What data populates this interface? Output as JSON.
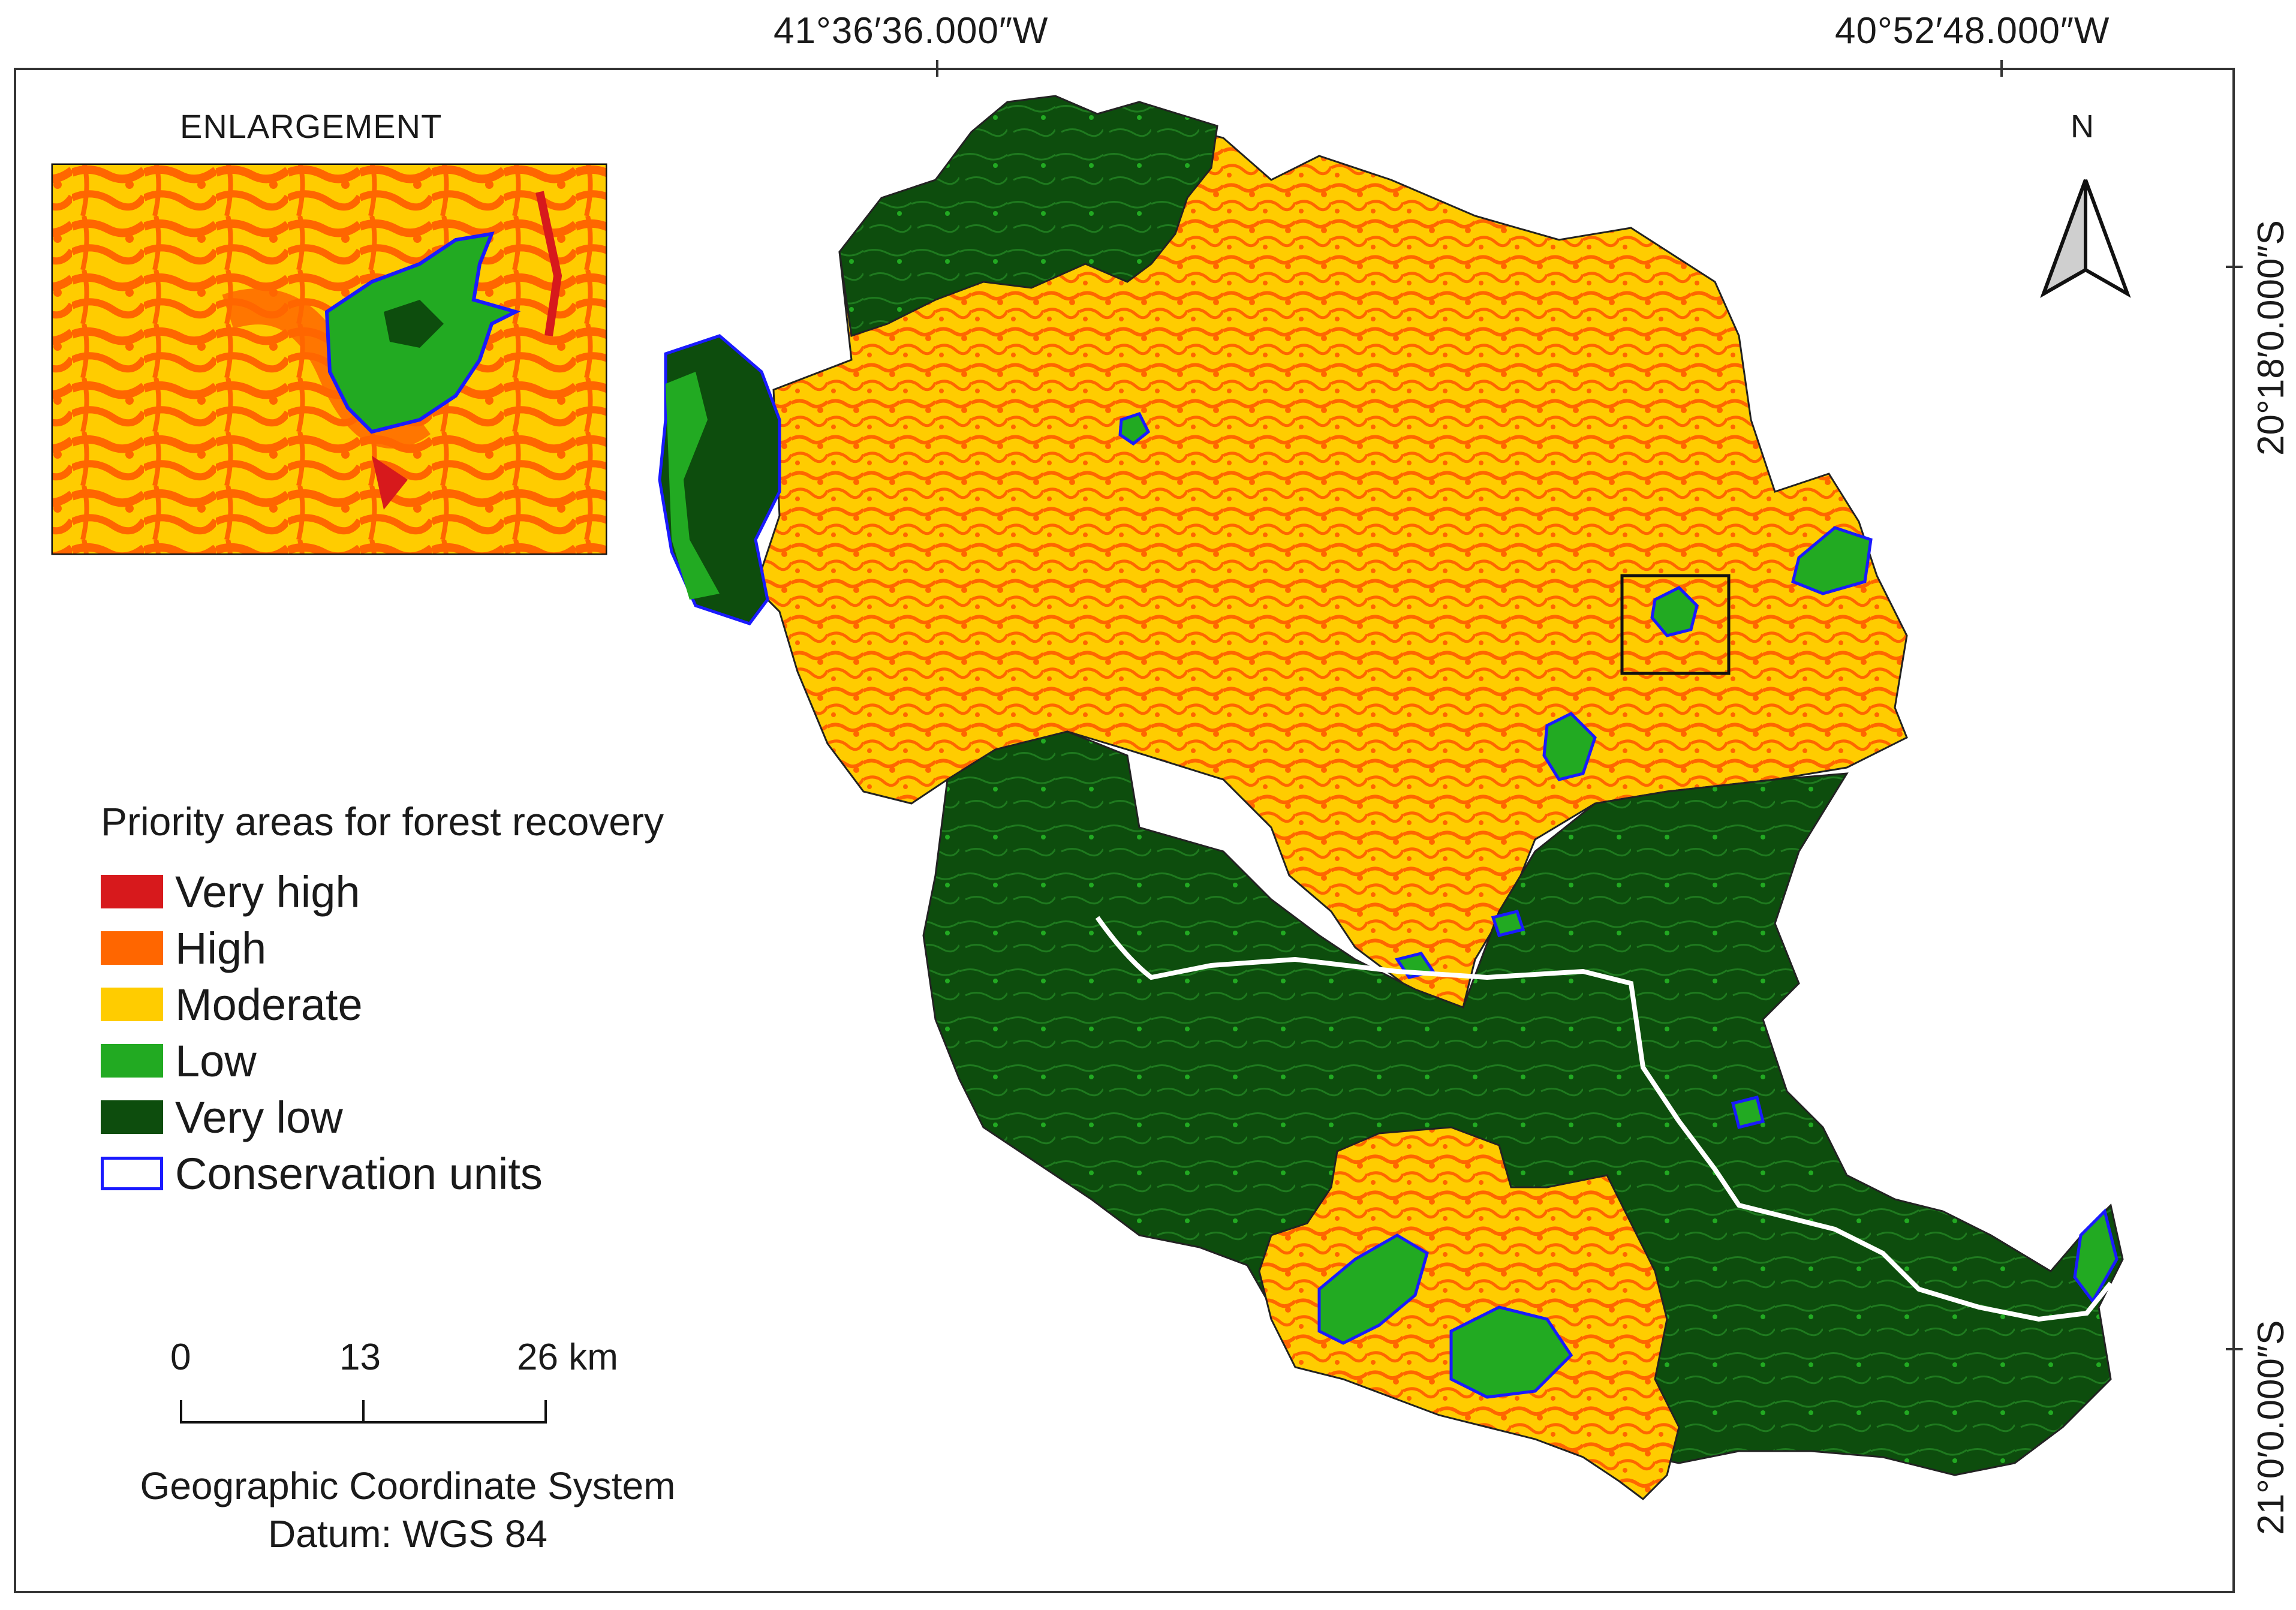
{
  "coordinates": {
    "top_left": "41°36′36.000″W",
    "top_right": "40°52′48.000″W",
    "right_top": "20°18′0.000″S",
    "right_bottom": "21°0′0.000″S"
  },
  "inset": {
    "title": "ENLARGEMENT"
  },
  "north_arrow": {
    "label": "N"
  },
  "legend": {
    "title": "Priority areas for forest recovery",
    "items": [
      {
        "label": "Very high",
        "color": "#d7191c"
      },
      {
        "label": "High",
        "color": "#ff6600"
      },
      {
        "label": "Moderate",
        "color": "#ffcc00"
      },
      {
        "label": "Low",
        "color": "#22aa22"
      },
      {
        "label": "Very low",
        "color": "#0d4d0d"
      },
      {
        "label": "Conservation units",
        "color": "#1a1aff"
      }
    ]
  },
  "scale_bar": {
    "labels": [
      "0",
      "13",
      "26 km"
    ]
  },
  "coordinate_system": {
    "line1": "Geographic Coordinate System",
    "line2": "Datum: WGS 84"
  },
  "colors": {
    "very_high": "#d7191c",
    "high": "#ff6600",
    "moderate": "#ffcc00",
    "low": "#22aa22",
    "very_low": "#0d4d0d",
    "conservation": "#1a1aff",
    "river": "#ffffff"
  }
}
